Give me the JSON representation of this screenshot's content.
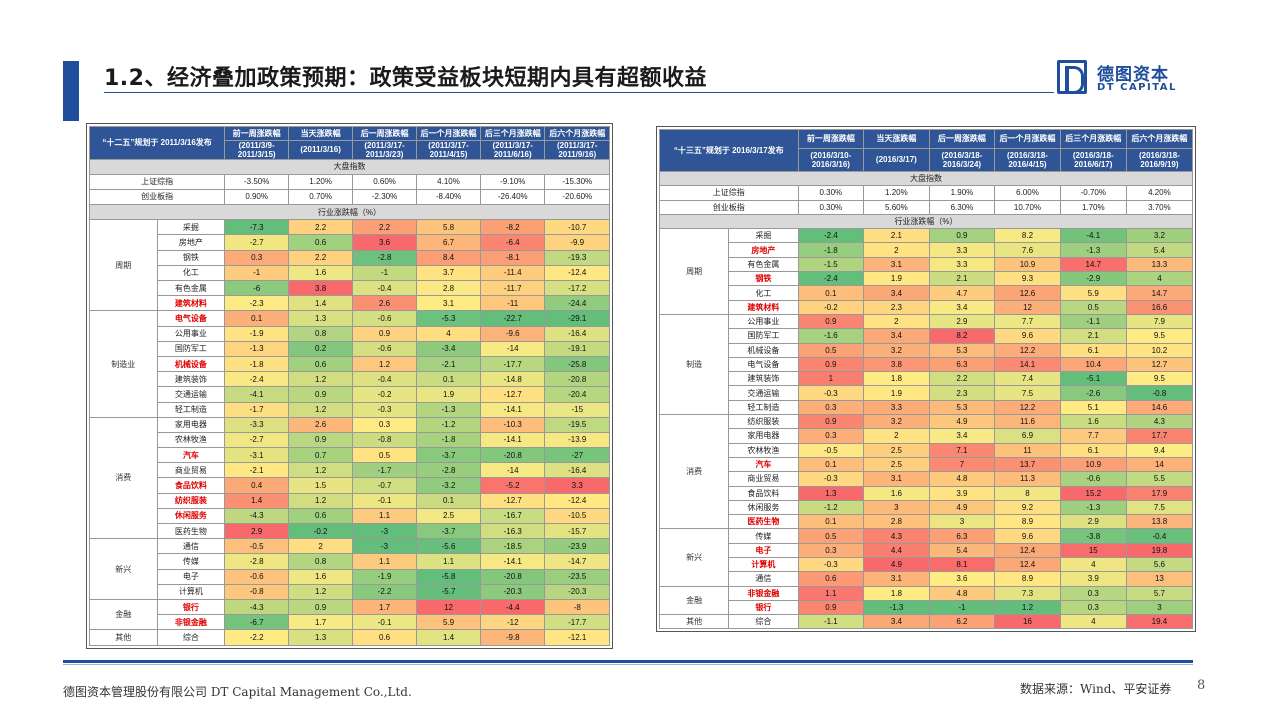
{
  "title": "1.2、经济叠加政策预期：政策受益板块短期内具有超额收益",
  "logo": {
    "cn": "德图资本",
    "en": "DT CAPITAL"
  },
  "footer": {
    "company": "德图资本管理股份有限公司 DT Capital Management Co.,Ltd.",
    "source": "数据来源：Wind、平安证券",
    "page": "8"
  },
  "left_table": {
    "corner": "“十二五”规划于 2011/3/16发布",
    "columns": [
      {
        "name": "前一周涨跌幅",
        "range": "(2011/3/9-2011/3/15)"
      },
      {
        "name": "当天涨跌幅",
        "range": "(2011/3/16)"
      },
      {
        "name": "后一周涨跌幅",
        "range": "(2011/3/17-2011/3/23)"
      },
      {
        "name": "后一个月涨跌幅",
        "range": "(2011/3/17-2011/4/15)"
      },
      {
        "name": "后三个月涨跌幅",
        "range": "(2011/3/17-2011/6/16)"
      },
      {
        "name": "后六个月涨跌幅",
        "range": "(2011/3/17-2011/9/16)"
      }
    ],
    "market_section": "大盘指数",
    "market_rows": [
      {
        "name": "上证综指",
        "values": [
          "-3.50%",
          "1.20%",
          "0.60%",
          "4.10%",
          "-9.10%",
          "-15.30%"
        ]
      },
      {
        "name": "创业板指",
        "values": [
          "0.90%",
          "0.70%",
          "-2.30%",
          "-8.40%",
          "-26.40%",
          "-20.60%"
        ]
      }
    ],
    "industry_section": "行业涨跌幅（%）",
    "groups": [
      {
        "name": "周期",
        "rows": [
          {
            "name": "采掘",
            "hl": false,
            "values": [
              -7.3,
              2.2,
              2.2,
              5.8,
              -8.2,
              -10.7
            ]
          },
          {
            "name": "房地产",
            "hl": false,
            "values": [
              -2.7,
              0.6,
              3.6,
              6.7,
              -6.4,
              -9.9
            ]
          },
          {
            "name": "钢铁",
            "hl": false,
            "values": [
              0.3,
              2.2,
              -2.8,
              8.4,
              -8.1,
              -19.3
            ]
          },
          {
            "name": "化工",
            "hl": false,
            "values": [
              -1,
              1.6,
              -1,
              3.7,
              -11.4,
              -12.4
            ]
          },
          {
            "name": "有色金属",
            "hl": false,
            "values": [
              -6,
              3.8,
              -0.4,
              2.8,
              -11.7,
              -17.2
            ]
          },
          {
            "name": "建筑材料",
            "hl": true,
            "values": [
              -2.3,
              1.4,
              2.6,
              3.1,
              -11,
              -24.4
            ]
          }
        ]
      },
      {
        "name": "制造业",
        "rows": [
          {
            "name": "电气设备",
            "hl": true,
            "values": [
              0.1,
              1.3,
              -0.6,
              -5.3,
              -22.7,
              -29.1
            ]
          },
          {
            "name": "公用事业",
            "hl": false,
            "values": [
              -1.9,
              0.8,
              0.9,
              4,
              -9.6,
              -16.4
            ]
          },
          {
            "name": "国防军工",
            "hl": false,
            "values": [
              -1.3,
              0.2,
              -0.6,
              -3.4,
              -14,
              -19.1
            ]
          },
          {
            "name": "机械设备",
            "hl": true,
            "values": [
              -1.8,
              0.6,
              1.2,
              -2.1,
              -17.7,
              -25.8
            ]
          },
          {
            "name": "建筑装饰",
            "hl": false,
            "values": [
              -2.4,
              1.2,
              -0.4,
              0.1,
              -14.8,
              -20.8
            ]
          },
          {
            "name": "交通运输",
            "hl": false,
            "values": [
              -4.1,
              0.9,
              -0.2,
              1.9,
              -12.7,
              -20.4
            ]
          },
          {
            "name": "轻工制造",
            "hl": false,
            "values": [
              -1.7,
              1.2,
              -0.3,
              -1.3,
              -14.1,
              -15
            ]
          }
        ]
      },
      {
        "name": "消费",
        "rows": [
          {
            "name": "家用电器",
            "hl": false,
            "values": [
              -3.3,
              2.6,
              0.3,
              -1.2,
              -10.3,
              -19.5
            ]
          },
          {
            "name": "农林牧渔",
            "hl": false,
            "values": [
              -2.7,
              0.9,
              -0.8,
              -1.8,
              -14.1,
              -13.9
            ]
          },
          {
            "name": "汽车",
            "hl": true,
            "values": [
              -3.1,
              0.7,
              0.5,
              -3.7,
              -20.8,
              -27
            ]
          },
          {
            "name": "商业贸易",
            "hl": false,
            "values": [
              -2.1,
              1.2,
              -1.7,
              -2.8,
              -14,
              -16.4
            ]
          },
          {
            "name": "食品饮料",
            "hl": true,
            "values": [
              0.4,
              1.5,
              -0.7,
              -3.2,
              -5.2,
              3.3
            ]
          },
          {
            "name": "纺织服装",
            "hl": true,
            "values": [
              1.4,
              1.2,
              -0.1,
              0.1,
              -12.7,
              -12.4
            ]
          },
          {
            "name": "休闲服务",
            "hl": true,
            "values": [
              -4.3,
              0.6,
              1.1,
              2.5,
              -16.7,
              -10.5
            ]
          },
          {
            "name": "医药生物",
            "hl": false,
            "values": [
              2.9,
              -0.2,
              -3,
              -3.7,
              -16.3,
              -15.7
            ]
          }
        ]
      },
      {
        "name": "新兴",
        "rows": [
          {
            "name": "通信",
            "hl": false,
            "values": [
              -0.5,
              2,
              -3,
              -5.6,
              -18.5,
              -23.9
            ]
          },
          {
            "name": "传媒",
            "hl": false,
            "values": [
              -2.8,
              0.8,
              1.1,
              1.1,
              -14.1,
              -14.7
            ]
          },
          {
            "name": "电子",
            "hl": false,
            "values": [
              -0.6,
              1.6,
              -1.9,
              -5.8,
              -20.8,
              -23.5
            ]
          },
          {
            "name": "计算机",
            "hl": false,
            "values": [
              -0.8,
              1.2,
              -2.2,
              -5.7,
              -20.3,
              -20.3
            ]
          }
        ]
      },
      {
        "name": "金融",
        "rows": [
          {
            "name": "银行",
            "hl": true,
            "values": [
              -4.3,
              0.9,
              1.7,
              12,
              -4.4,
              -8
            ]
          },
          {
            "name": "非银金融",
            "hl": true,
            "values": [
              -6.7,
              1.7,
              -0.1,
              5.9,
              -12,
              -17.7
            ]
          }
        ]
      },
      {
        "name": "其他",
        "rows": [
          {
            "name": "综合",
            "hl": false,
            "values": [
              -2.2,
              1.3,
              0.6,
              1.4,
              -9.8,
              -12.1
            ]
          }
        ]
      }
    ]
  },
  "right_table": {
    "corner": "“十三五”规划于 2016/3/17发布",
    "columns": [
      {
        "name": "前一周涨跌幅",
        "range": "(2016/3/10-2016/3/16)"
      },
      {
        "name": "当天涨跌幅",
        "range": "(2016/3/17)"
      },
      {
        "name": "后一周涨跌幅",
        "range": "(2016/3/18-2016/3/24)"
      },
      {
        "name": "后一个月涨跌幅",
        "range": "(2016/3/18-2016/4/15)"
      },
      {
        "name": "后三个月涨跌幅",
        "range": "(2016/3/18-2016/6/17)"
      },
      {
        "name": "后六个月涨跌幅",
        "range": "(2016/3/18-2016/9/19)"
      }
    ],
    "market_section": "大盘指数",
    "market_rows": [
      {
        "name": "上证综指",
        "values": [
          "0.30%",
          "1.20%",
          "1.90%",
          "6.00%",
          "-0.70%",
          "4.20%"
        ]
      },
      {
        "name": "创业板指",
        "values": [
          "0.30%",
          "5.60%",
          "6.30%",
          "10.70%",
          "1.70%",
          "3.70%"
        ]
      }
    ],
    "industry_section": "行业涨跌幅（%）",
    "groups": [
      {
        "name": "周期",
        "rows": [
          {
            "name": "采掘",
            "hl": false,
            "values": [
              -2.4,
              2.1,
              0.9,
              8.2,
              -4.1,
              3.2
            ]
          },
          {
            "name": "房地产",
            "hl": true,
            "values": [
              -1.8,
              2,
              3.3,
              7.6,
              -1.3,
              5.4
            ]
          },
          {
            "name": "有色金属",
            "hl": false,
            "values": [
              -1.5,
              3.1,
              3.3,
              10.9,
              14.7,
              13.3
            ]
          },
          {
            "name": "钢铁",
            "hl": true,
            "values": [
              -2.4,
              1.9,
              2.1,
              9.3,
              -2.9,
              4
            ]
          },
          {
            "name": "化工",
            "hl": false,
            "values": [
              0.1,
              3.4,
              4.7,
              12.6,
              5.9,
              14.7
            ]
          },
          {
            "name": "建筑材料",
            "hl": true,
            "values": [
              -0.2,
              2.3,
              3.4,
              12,
              0.5,
              16.6
            ]
          }
        ]
      },
      {
        "name": "制造",
        "rows": [
          {
            "name": "公用事业",
            "hl": false,
            "values": [
              0.9,
              2,
              2.9,
              7.7,
              -1.1,
              7.9
            ]
          },
          {
            "name": "国防军工",
            "hl": false,
            "values": [
              -1.6,
              3.4,
              8.2,
              9.6,
              2.1,
              9.5
            ]
          },
          {
            "name": "机械设备",
            "hl": false,
            "values": [
              0.5,
              3.2,
              5.3,
              12.2,
              6.1,
              10.2
            ]
          },
          {
            "name": "电气设备",
            "hl": false,
            "values": [
              0.9,
              3.8,
              6.3,
              14.1,
              10.4,
              12.7
            ]
          },
          {
            "name": "建筑装饰",
            "hl": false,
            "values": [
              1,
              1.8,
              2.2,
              7.4,
              -5.1,
              9.5
            ]
          },
          {
            "name": "交通运输",
            "hl": false,
            "values": [
              -0.3,
              1.9,
              2.3,
              7.5,
              -2.6,
              -0.8
            ]
          },
          {
            "name": "轻工制造",
            "hl": false,
            "values": [
              0.3,
              3.3,
              5.3,
              12.2,
              5.1,
              14.6
            ]
          }
        ]
      },
      {
        "name": "消费",
        "rows": [
          {
            "name": "纺织服装",
            "hl": false,
            "values": [
              0.9,
              3.2,
              4.9,
              11.6,
              1.6,
              4.3
            ]
          },
          {
            "name": "家用电器",
            "hl": false,
            "values": [
              0.3,
              2,
              3.4,
              6.9,
              7.7,
              17.7
            ]
          },
          {
            "name": "农林牧渔",
            "hl": false,
            "values": [
              -0.5,
              2.5,
              7.1,
              11,
              6.1,
              9.4
            ]
          },
          {
            "name": "汽车",
            "hl": true,
            "values": [
              0.1,
              2.5,
              7,
              13.7,
              10.9,
              14
            ]
          },
          {
            "name": "商业贸易",
            "hl": false,
            "values": [
              -0.3,
              3.1,
              4.8,
              11.3,
              -0.6,
              5.5
            ]
          },
          {
            "name": "食品饮料",
            "hl": false,
            "values": [
              1.3,
              1.6,
              3.9,
              8,
              15.2,
              17.9
            ]
          },
          {
            "name": "休闲服务",
            "hl": false,
            "values": [
              -1.2,
              3,
              4.9,
              9.2,
              -1.3,
              7.5
            ]
          },
          {
            "name": "医药生物",
            "hl": true,
            "values": [
              0.1,
              2.8,
              3,
              8.9,
              2.9,
              13.8
            ]
          }
        ]
      },
      {
        "name": "新兴",
        "rows": [
          {
            "name": "传媒",
            "hl": false,
            "values": [
              0.5,
              4.3,
              6.3,
              9.6,
              -3.8,
              -0.4
            ]
          },
          {
            "name": "电子",
            "hl": true,
            "values": [
              0.3,
              4.4,
              5.4,
              12.4,
              15,
              19.8
            ]
          },
          {
            "name": "计算机",
            "hl": true,
            "values": [
              -0.3,
              4.9,
              8.1,
              12.4,
              4,
              5.6
            ]
          },
          {
            "name": "通信",
            "hl": false,
            "values": [
              0.6,
              3.1,
              3.6,
              8.9,
              3.9,
              13
            ]
          }
        ]
      },
      {
        "name": "金融",
        "rows": [
          {
            "name": "非银金融",
            "hl": true,
            "values": [
              1.1,
              1.8,
              4.8,
              7.3,
              0.3,
              5.7
            ]
          },
          {
            "name": "银行",
            "hl": true,
            "values": [
              0.9,
              -1.3,
              -1,
              1.2,
              0.3,
              3
            ]
          }
        ]
      },
      {
        "name": "其他",
        "rows": [
          {
            "name": "综合",
            "hl": false,
            "values": [
              -1.1,
              3.4,
              6.2,
              16,
              4,
              19.4
            ]
          }
        ]
      }
    ]
  }
}
